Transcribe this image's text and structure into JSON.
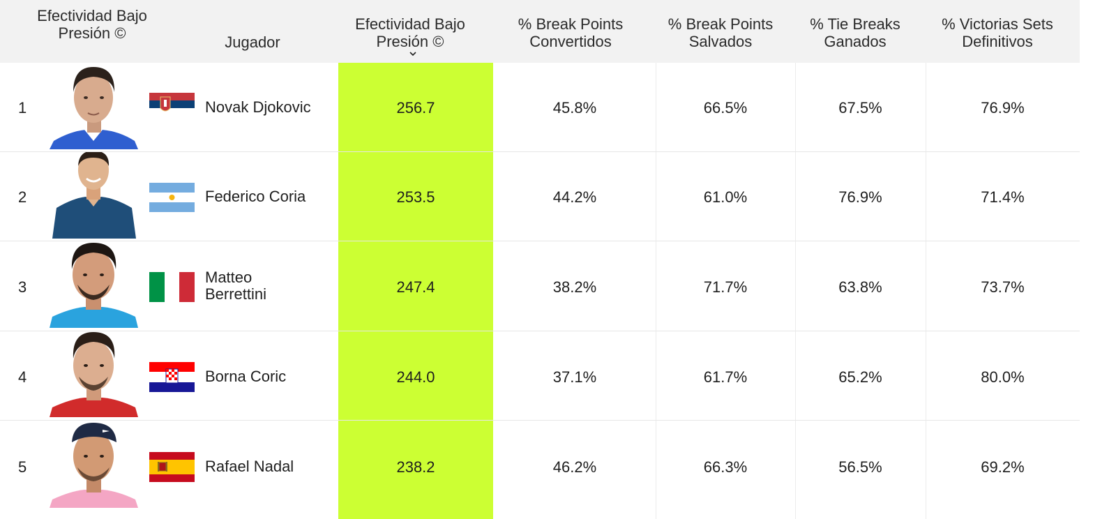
{
  "header": {
    "rank_label": "Efectividad Bajo Presión ©",
    "player_label": "Jugador",
    "columns": [
      "Efectividad Bajo Presión ©",
      "% Break Points Convertidos",
      "% Break Points Salvados",
      "% Tie Breaks Ganados",
      "% Victorias Sets Definitivos"
    ],
    "sorted_column": 0
  },
  "colors": {
    "highlight": "#ccff33",
    "header_bg": "#f2f2f2"
  },
  "rows": [
    {
      "rank": "1",
      "player": "Novak Djokovic",
      "flag": "serbia-flag",
      "values": [
        "256.7",
        "45.8%",
        "66.5%",
        "67.5%",
        "76.9%"
      ]
    },
    {
      "rank": "2",
      "player": "Federico Coria",
      "flag": "argentina-flag",
      "values": [
        "253.5",
        "44.2%",
        "61.0%",
        "76.9%",
        "71.4%"
      ]
    },
    {
      "rank": "3",
      "player": "Matteo Berrettini",
      "flag": "italy-flag",
      "values": [
        "247.4",
        "38.2%",
        "71.7%",
        "63.8%",
        "73.7%"
      ]
    },
    {
      "rank": "4",
      "player": "Borna Coric",
      "flag": "croatia-flag",
      "values": [
        "244.0",
        "37.1%",
        "61.7%",
        "65.2%",
        "80.0%"
      ]
    },
    {
      "rank": "5",
      "player": "Rafael Nadal",
      "flag": "spain-flag",
      "values": [
        "238.2",
        "46.2%",
        "66.3%",
        "56.5%",
        "69.2%"
      ]
    }
  ]
}
